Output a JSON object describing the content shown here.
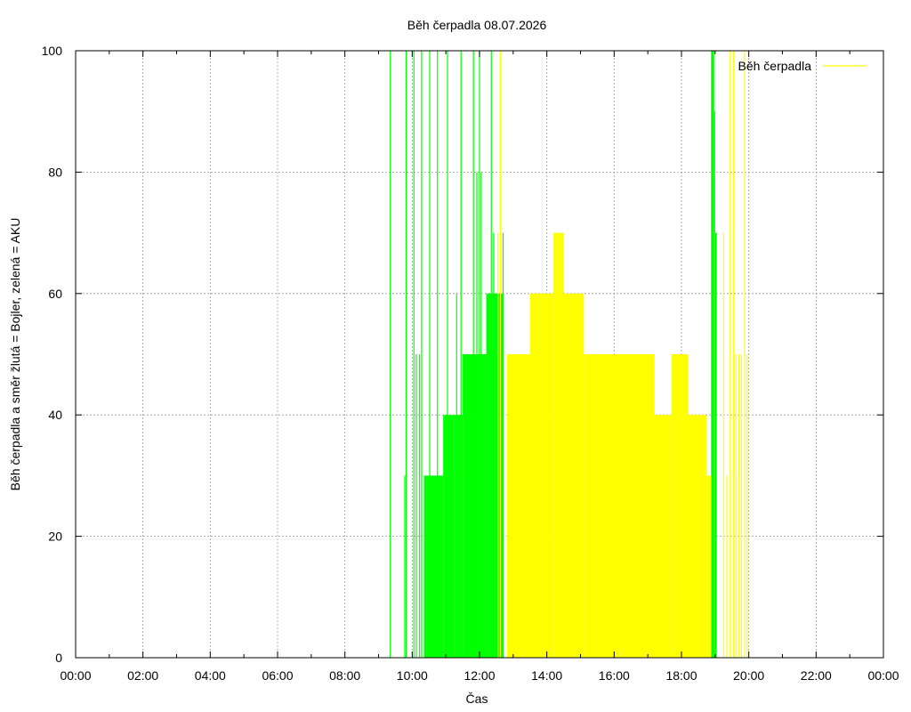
{
  "chart_data": {
    "type": "bar",
    "title": "Běh čerpadla 08.07.2026",
    "xlabel": "Čas",
    "ylabel": "Běh čerpadla a směr žlutá = Bojler, zelená = AKU",
    "x_unit": "hours",
    "xlim": [
      0,
      24
    ],
    "ylim": [
      0,
      100
    ],
    "x_ticks": [
      {
        "value": 0,
        "label": "00:00"
      },
      {
        "value": 2,
        "label": "02:00"
      },
      {
        "value": 4,
        "label": "04:00"
      },
      {
        "value": 6,
        "label": "06:00"
      },
      {
        "value": 8,
        "label": "08:00"
      },
      {
        "value": 10,
        "label": "10:00"
      },
      {
        "value": 12,
        "label": "12:00"
      },
      {
        "value": 14,
        "label": "14:00"
      },
      {
        "value": 16,
        "label": "16:00"
      },
      {
        "value": 18,
        "label": "18:00"
      },
      {
        "value": 20,
        "label": "20:00"
      },
      {
        "value": 22,
        "label": "22:00"
      },
      {
        "value": 24,
        "label": "00:00"
      }
    ],
    "y_ticks": [
      {
        "value": 0,
        "label": "0"
      },
      {
        "value": 20,
        "label": "20"
      },
      {
        "value": 40,
        "label": "40"
      },
      {
        "value": 60,
        "label": "60"
      },
      {
        "value": 80,
        "label": "80"
      },
      {
        "value": 100,
        "label": "100"
      }
    ],
    "grid": true,
    "legend": {
      "position": "top-right",
      "entries": [
        {
          "label": "Běh čerpadla",
          "color": "#ffff00"
        }
      ]
    },
    "series": [
      {
        "color": "#00ff00",
        "spikes": [
          [
            9.35,
            100
          ],
          [
            9.78,
            30
          ],
          [
            9.82,
            100
          ],
          [
            10.05,
            100
          ],
          [
            10.12,
            50
          ],
          [
            10.22,
            50
          ],
          [
            10.28,
            100
          ],
          [
            10.52,
            100
          ],
          [
            10.75,
            100
          ],
          [
            11.05,
            100
          ],
          [
            11.32,
            60
          ],
          [
            11.45,
            100
          ],
          [
            11.82,
            100
          ],
          [
            11.92,
            80
          ],
          [
            12.0,
            100
          ],
          [
            12.05,
            80
          ],
          [
            12.35,
            100
          ],
          [
            12.42,
            70
          ],
          [
            12.7,
            70
          ]
        ],
        "blocks": [
          {
            "x_start": 10.35,
            "x_end": 10.92,
            "value": 30
          },
          {
            "x_start": 10.92,
            "x_end": 11.25,
            "value": 40
          },
          {
            "x_start": 11.25,
            "x_end": 11.5,
            "value": 40
          },
          {
            "x_start": 11.5,
            "x_end": 11.75,
            "value": 50
          },
          {
            "x_start": 11.75,
            "x_end": 12.2,
            "value": 50
          },
          {
            "x_start": 12.2,
            "x_end": 12.55,
            "value": 60
          },
          {
            "x_start": 12.55,
            "x_end": 12.72,
            "value": 60
          },
          {
            "x_start": 18.88,
            "x_end": 18.97,
            "value": 100
          },
          {
            "x_start": 18.97,
            "x_end": 19.0,
            "value": 90
          },
          {
            "x_start": 19.0,
            "x_end": 19.05,
            "value": 70
          }
        ]
      },
      {
        "color": "#ffff00",
        "spikes": [
          [
            12.62,
            100
          ],
          [
            12.55,
            70
          ],
          [
            19.25,
            70
          ],
          [
            19.35,
            30
          ],
          [
            19.45,
            100
          ],
          [
            19.55,
            100
          ],
          [
            19.62,
            50
          ],
          [
            19.7,
            50
          ],
          [
            19.78,
            50
          ],
          [
            19.88,
            100
          ],
          [
            19.95,
            50
          ]
        ],
        "blocks": [
          {
            "x_start": 12.82,
            "x_end": 13.5,
            "value": 50
          },
          {
            "x_start": 13.5,
            "x_end": 14.2,
            "value": 60
          },
          {
            "x_start": 14.2,
            "x_end": 14.5,
            "value": 70
          },
          {
            "x_start": 14.5,
            "x_end": 15.1,
            "value": 60
          },
          {
            "x_start": 15.1,
            "x_end": 16.2,
            "value": 50
          },
          {
            "x_start": 16.2,
            "x_end": 17.2,
            "value": 50
          },
          {
            "x_start": 17.2,
            "x_end": 17.7,
            "value": 40
          },
          {
            "x_start": 17.7,
            "x_end": 18.2,
            "value": 50
          },
          {
            "x_start": 18.2,
            "x_end": 18.75,
            "value": 40
          },
          {
            "x_start": 18.75,
            "x_end": 18.88,
            "value": 30
          }
        ]
      }
    ]
  }
}
